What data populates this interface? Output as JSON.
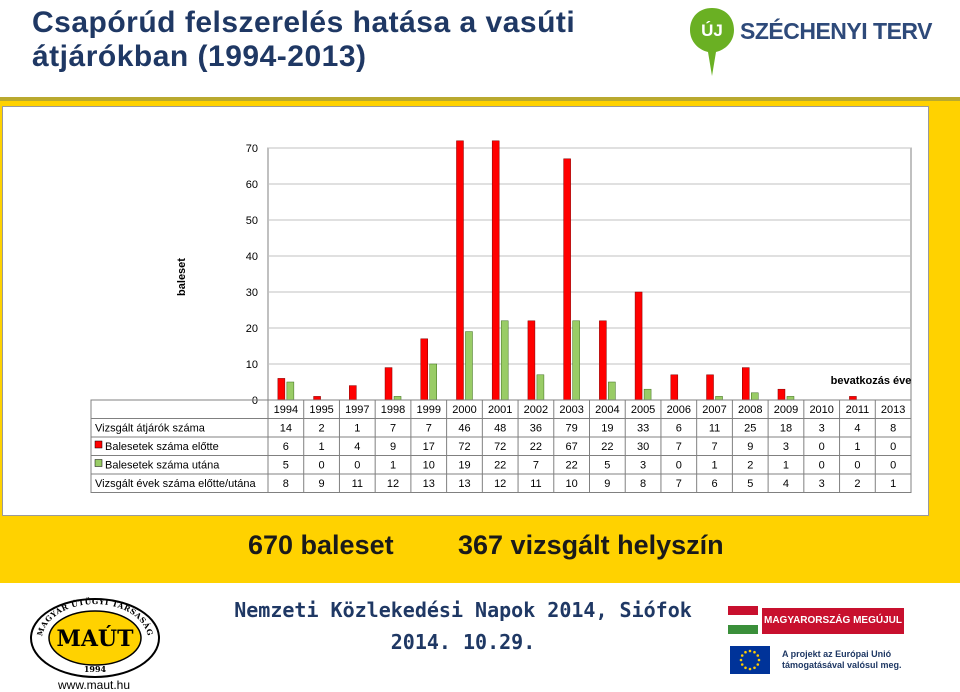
{
  "title_line1": "Csapórúd felszerelés hatása a vasúti",
  "title_line2": "átjárókban (1994-2013)",
  "logo": {
    "uj": "ÚJ",
    "text": "SZÉCHENYI TERV"
  },
  "summary": {
    "accidents": "670 baleset",
    "locations": "367 vizsgált helyszín"
  },
  "footer": {
    "event": "Nemzeti Közlekedési Napok 2014, Siófok",
    "date": "2014. 10.29.",
    "maut_name": "MAÚT",
    "maut_ring": "MAGYAR ÚTÜGYI TÁRSASÁG",
    "maut_year": "1994",
    "maut_url": "www.maut.hu",
    "hu_banner": "MAGYARORSZÁG MEGÚJUL",
    "eu_line1": "A projekt az Európai Unió",
    "eu_line2": "támogatásával valósul meg."
  },
  "colors": {
    "before": "#ff0000",
    "after": "#99cc66",
    "band": "#ffd200",
    "title": "#1f3864",
    "green_logo": "#6ab023"
  },
  "chart_data": {
    "type": "bar",
    "ylabel": "baleset",
    "xlabel": "bevatkozás éve",
    "ylim": [
      0,
      70
    ],
    "yticks": [
      0,
      10,
      20,
      30,
      40,
      50,
      60,
      70
    ],
    "grid": true,
    "categories": [
      "1994",
      "1995",
      "1997",
      "1998",
      "1999",
      "2000",
      "2001",
      "2002",
      "2003",
      "2004",
      "2005",
      "2006",
      "2007",
      "2008",
      "2009",
      "2010",
      "2011",
      "2013"
    ],
    "series": [
      {
        "name": "Balesetek száma előtte",
        "values": [
          6,
          1,
          4,
          9,
          17,
          72,
          72,
          22,
          67,
          22,
          30,
          7,
          7,
          9,
          3,
          0,
          1,
          0
        ]
      },
      {
        "name": "Balesetek száma utána",
        "values": [
          5,
          0,
          0,
          1,
          10,
          19,
          22,
          7,
          22,
          5,
          3,
          0,
          1,
          2,
          1,
          0,
          0,
          0
        ]
      }
    ],
    "table": [
      {
        "label": "Vizsgált átjárók száma",
        "values": [
          14,
          2,
          1,
          7,
          7,
          46,
          48,
          36,
          79,
          19,
          33,
          6,
          11,
          25,
          18,
          3,
          4,
          8
        ]
      },
      {
        "label": "Balesetek száma előtte",
        "values": [
          6,
          1,
          4,
          9,
          17,
          72,
          72,
          22,
          67,
          22,
          30,
          7,
          7,
          9,
          3,
          0,
          1,
          0
        ]
      },
      {
        "label": "Balesetek száma utána",
        "values": [
          5,
          0,
          0,
          1,
          10,
          19,
          22,
          7,
          22,
          5,
          3,
          0,
          1,
          2,
          1,
          0,
          0,
          0
        ]
      },
      {
        "label": "Vizsgált évek száma előtte/utána",
        "values": [
          8,
          9,
          11,
          12,
          13,
          13,
          12,
          11,
          10,
          9,
          8,
          7,
          6,
          5,
          4,
          3,
          2,
          1
        ]
      }
    ]
  }
}
